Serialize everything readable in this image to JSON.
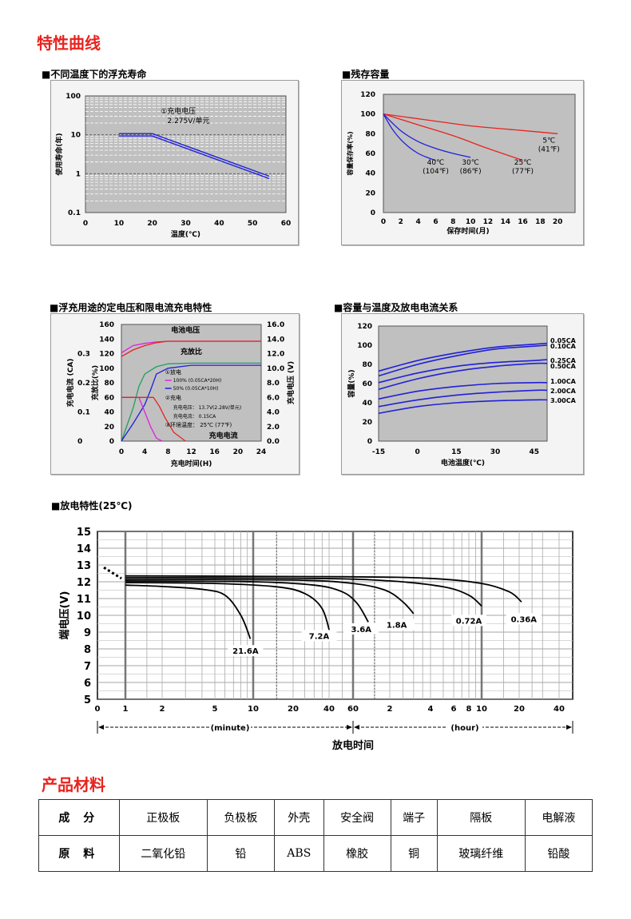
{
  "page": {
    "title_curves": "特性曲线",
    "title_materials": "产品材料"
  },
  "colors": {
    "red": "#e8231e",
    "blue": "#2020d8",
    "magenta": "#e020e0",
    "green": "#20a060",
    "plot": "#c0c0c0"
  },
  "chart_data": [
    {
      "id": "float-life",
      "type": "line",
      "title": "■不同温度下的浮充寿命",
      "xlabel": "温度(℃)",
      "ylabel": "使用寿命(年)",
      "xlim": [
        0,
        60
      ],
      "ylim": [
        0.1,
        100
      ],
      "yscale": "log",
      "xticks": [
        "0",
        "10",
        "20",
        "30",
        "40",
        "50",
        "60"
      ],
      "yticks": [
        "100",
        "10",
        "1",
        "0.1"
      ],
      "annotation": [
        "①充电电压",
        "2.275V/单元"
      ],
      "series": [
        {
          "x": [
            10,
            20,
            55
          ],
          "y": [
            10,
            10,
            0.8
          ]
        }
      ]
    },
    {
      "id": "residual-capacity",
      "type": "line",
      "title": "■残存容量",
      "xlabel": "保存时间(月)",
      "ylabel": "容量保存率(%)",
      "xlim": [
        0,
        22
      ],
      "ylim": [
        0,
        120
      ],
      "xticks": [
        "0",
        "2",
        "4",
        "6",
        "8",
        "10",
        "12",
        "14",
        "16",
        "18",
        "20"
      ],
      "yticks": [
        "120",
        "100",
        "80",
        "60",
        "40",
        "20",
        "0"
      ],
      "series": [
        {
          "name_lines": [
            "5℃",
            "(41℉)"
          ],
          "color": "red",
          "x": [
            0,
            5,
            10,
            15,
            20
          ],
          "y": [
            100,
            94,
            88,
            84,
            80
          ]
        },
        {
          "name_lines": [
            "25℃",
            "(77℉)"
          ],
          "color": "red",
          "x": [
            0,
            4,
            8,
            12,
            16
          ],
          "y": [
            100,
            89,
            78,
            65,
            53
          ]
        },
        {
          "name_lines": [
            "30℃",
            "(86℉)"
          ],
          "color": "blue",
          "x": [
            0,
            2,
            4,
            6,
            8,
            10
          ],
          "y": [
            100,
            83,
            72,
            65,
            60,
            56
          ]
        },
        {
          "name_lines": [
            "40℃",
            "(104℉)"
          ],
          "color": "blue",
          "x": [
            0,
            1,
            2,
            3,
            4,
            5,
            6
          ],
          "y": [
            100,
            85,
            74,
            66,
            60,
            56,
            53
          ]
        }
      ]
    },
    {
      "id": "charge-characteristics",
      "type": "line",
      "title": "■浮充用途的定电压和限电流充电特性",
      "xlabel": "充电时间(H)",
      "ylabel_current": "充电电流 (CA)",
      "ylabel_ratio": "充放比(%)",
      "ylabel_voltage": "充电电压 (V)",
      "xticks": [
        "0",
        "4",
        "8",
        "12",
        "16",
        "20",
        "24"
      ],
      "yticks_ratio": [
        "160",
        "140",
        "120",
        "100",
        "80",
        "60",
        "40",
        "20",
        "0"
      ],
      "yticks_current": [
        "0.3",
        "0.2",
        "0.1",
        "0"
      ],
      "yticks_voltage": [
        "16.0",
        "14.0",
        "12.0",
        "10.0",
        "8.0",
        "6.0",
        "4.0",
        "2.0",
        "0.0"
      ],
      "labels": {
        "voltage": "电池电压",
        "ratio": "充放比",
        "current": "充电电流"
      },
      "legend": [
        "①放电",
        "100% (0.05CA*20H)",
        "50% (0.05CA*10H)",
        "②充电",
        "充电电压： 13.7V(2.28V/单元)",
        "充电电流： 0.15CA",
        "③环境温度： 25℃ (77℉)"
      ],
      "series": [
        {
          "color": "magenta",
          "kind": "voltage",
          "x": [
            0,
            2,
            4,
            6,
            8,
            24
          ],
          "y": [
            121,
            131,
            134,
            136,
            137,
            137
          ]
        },
        {
          "color": "red",
          "kind": "voltage",
          "x": [
            0,
            2,
            4,
            6,
            8,
            24
          ],
          "y": [
            116,
            125,
            131,
            135,
            137,
            137
          ]
        },
        {
          "color": "green",
          "kind": "ratio",
          "x": [
            0,
            2,
            3,
            4,
            6,
            8,
            12,
            24
          ],
          "y": [
            0,
            45,
            75,
            92,
            102,
            106,
            107,
            107
          ]
        },
        {
          "color": "blue",
          "kind": "ratio",
          "x": [
            0,
            2,
            4,
            5,
            6,
            8,
            12,
            24
          ],
          "y": [
            0,
            24,
            50,
            70,
            92,
            100,
            104,
            104
          ]
        },
        {
          "color": "magenta",
          "kind": "current",
          "x": [
            0,
            3,
            4,
            5,
            6,
            7
          ],
          "y": [
            0.15,
            0.15,
            0.1,
            0.05,
            0.01,
            0
          ]
        },
        {
          "color": "red",
          "kind": "current",
          "x": [
            0,
            5.5,
            6.5,
            7.5,
            9,
            11
          ],
          "y": [
            0.15,
            0.15,
            0.12,
            0.08,
            0.03,
            0
          ]
        }
      ]
    },
    {
      "id": "capacity-temp",
      "type": "line",
      "title": "■容量与温度及放电电流关系",
      "xlabel": "电池温度(℃)",
      "ylabel": "容量(%)",
      "xlim": [
        -15,
        50
      ],
      "ylim": [
        0,
        120
      ],
      "xticks": [
        "-15",
        "0",
        "15",
        "30",
        "45"
      ],
      "yticks": [
        "120",
        "100",
        "80",
        "60",
        "40",
        "20",
        "0"
      ],
      "series": [
        {
          "name": "0.05CA",
          "x": [
            -15,
            0,
            15,
            30,
            45,
            50
          ],
          "y": [
            73,
            84,
            92,
            98,
            101,
            102
          ]
        },
        {
          "name": "0.10CA",
          "x": [
            -15,
            0,
            15,
            30,
            45,
            50
          ],
          "y": [
            68,
            80,
            89,
            96,
            99,
            100
          ]
        },
        {
          "name": "0.25CA",
          "x": [
            -15,
            0,
            15,
            30,
            45,
            50
          ],
          "y": [
            61,
            71,
            78,
            82,
            84,
            85
          ]
        },
        {
          "name": "0.50CA",
          "x": [
            -15,
            0,
            15,
            30,
            45,
            50
          ],
          "y": [
            54,
            65,
            73,
            78,
            81,
            81
          ]
        },
        {
          "name": "1.00CA",
          "x": [
            -15,
            0,
            15,
            30,
            45,
            50
          ],
          "y": [
            44,
            52,
            57,
            60,
            61,
            61
          ]
        },
        {
          "name": "2.00CA",
          "x": [
            -15,
            0,
            15,
            30,
            45,
            50
          ],
          "y": [
            36,
            43,
            48,
            51,
            53,
            53
          ]
        },
        {
          "name": "3.00CA",
          "x": [
            -15,
            0,
            15,
            30,
            45,
            50
          ],
          "y": [
            29,
            36,
            40,
            42,
            43,
            43
          ]
        }
      ]
    },
    {
      "id": "discharge",
      "type": "line",
      "title": "■放电特性(25℃)",
      "ylabel": "端电压(V)",
      "xlabel": "放电时间",
      "unit_minute": "(minute)",
      "unit_hour": "(hour)",
      "ylim": [
        5,
        15
      ],
      "yticks": [
        "15",
        "14",
        "13",
        "12",
        "11",
        "10",
        "9",
        "8",
        "7",
        "6",
        "5"
      ],
      "xticks": [
        {
          "label": "0",
          "min": 0.6
        },
        {
          "label": "1",
          "min": 1
        },
        {
          "label": "2",
          "min": 2
        },
        {
          "label": "5",
          "min": 5
        },
        {
          "label": "10",
          "min": 10
        },
        {
          "label": "20",
          "min": 20
        },
        {
          "label": "40",
          "min": 40
        },
        {
          "label": "60",
          "min": 60
        },
        {
          "label": "2",
          "min": 120
        },
        {
          "label": "4",
          "min": 240
        },
        {
          "label": "6",
          "min": 360
        },
        {
          "label": "8",
          "min": 480
        },
        {
          "label": "10",
          "min": 600
        },
        {
          "label": "20",
          "min": 1200
        },
        {
          "label": "40",
          "min": 2400
        }
      ],
      "series": [
        {
          "name": "21.6A",
          "x": [
            1,
            2,
            4,
            6,
            8,
            9.5
          ],
          "y": [
            11.8,
            11.72,
            11.55,
            11.2,
            10.0,
            8.6
          ]
        },
        {
          "name": "7.2A",
          "x": [
            1,
            5,
            15,
            25,
            35,
            41
          ],
          "y": [
            11.95,
            11.9,
            11.7,
            11.3,
            10.4,
            8.8
          ]
        },
        {
          "name": "3.6A",
          "x": [
            1,
            10,
            30,
            50,
            65,
            80
          ],
          "y": [
            12.05,
            12.0,
            11.8,
            11.4,
            10.7,
            9.6
          ]
        },
        {
          "name": "1.8A",
          "x": [
            1,
            20,
            60,
            110,
            150,
            180
          ],
          "y": [
            12.15,
            12.1,
            11.9,
            11.5,
            10.8,
            10.1
          ]
        },
        {
          "name": "0.72A",
          "x": [
            1,
            30,
            120,
            300,
            480,
            600
          ],
          "y": [
            12.25,
            12.2,
            12.05,
            11.7,
            11.2,
            10.55
          ]
        },
        {
          "name": "0.36A",
          "x": [
            1,
            50,
            240,
            600,
            1000,
            1250
          ],
          "y": [
            12.35,
            12.3,
            12.2,
            11.9,
            11.4,
            10.8
          ]
        }
      ]
    }
  ],
  "materials": {
    "headers": [
      "成 分",
      "正极板",
      "负极板",
      "外壳",
      "安全阀",
      "端子",
      "隔板",
      "电解液"
    ],
    "values": [
      "原 料",
      "二氧化铅",
      "铅",
      "ABS",
      "橡胶",
      "铜",
      "玻璃纤维",
      "铅酸"
    ]
  }
}
